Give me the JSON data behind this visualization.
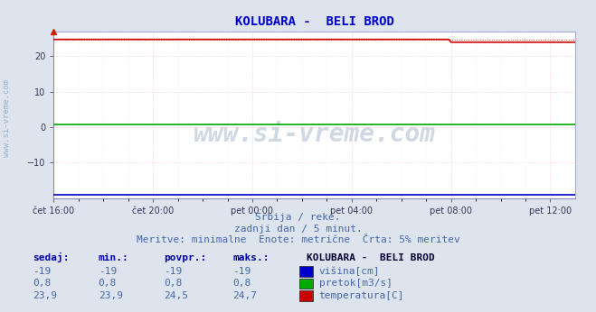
{
  "title": "KOLUBARA -  BELI BROD",
  "title_color": "#0000cc",
  "title_fontsize": 10,
  "bg_color": "#dde4ee",
  "plot_bg_color": "#ffffff",
  "grid_color": "#ffbbbb",
  "grid_color_minor": "#ffdddd",
  "x_labels": [
    "čet 16:00",
    "čet 20:00",
    "pet 00:00",
    "pet 04:00",
    "pet 08:00",
    "pet 12:00"
  ],
  "x_ticks_major": [
    0,
    48,
    96,
    144,
    192,
    240
  ],
  "x_minor_step": 12,
  "x_max": 252,
  "ylim": [
    -20,
    27
  ],
  "yticks": [
    -10,
    0,
    10,
    20
  ],
  "n_points": 288,
  "visina_value": -19,
  "pretok_value": 0.8,
  "temp_value_start": 24.7,
  "temp_value_end": 23.9,
  "temp_drop_index": 192,
  "visina_color": "#0000cc",
  "pretok_color": "#00aa00",
  "temp_color": "#cc0000",
  "watermark": "www.si-vreme.com",
  "watermark_color": "#aabbcc",
  "sidebar_text": "www.si-vreme.com",
  "sidebar_color": "#7799bb",
  "footer_line1": "Srbija / reke.",
  "footer_line2": "zadnji dan / 5 minut.",
  "footer_line3": "Meritve: minimalne  Enote: metrične  Črta: 5% meritev",
  "footer_color": "#4466aa",
  "table_headers": [
    "sedaj:",
    "min.:",
    "povpr.:",
    "maks.:"
  ],
  "table_header_color": "#0000aa",
  "station_label": "KOLUBARA -  BELI BROD",
  "station_color": "#000033",
  "rows": [
    {
      "sedaj": "-19",
      "min": "-19",
      "povpr": "-19",
      "maks": "-19",
      "color": "#0000cc",
      "label": "višina[cm]"
    },
    {
      "sedaj": "0,8",
      "min": "0,8",
      "povpr": "0,8",
      "maks": "0,8",
      "color": "#00aa00",
      "label": "pretok[m3/s]"
    },
    {
      "sedaj": "23,9",
      "min": "23,9",
      "povpr": "24,5",
      "maks": "24,7",
      "color": "#cc0000",
      "label": "temperatura[C]"
    }
  ],
  "row_color": "#4466aa"
}
